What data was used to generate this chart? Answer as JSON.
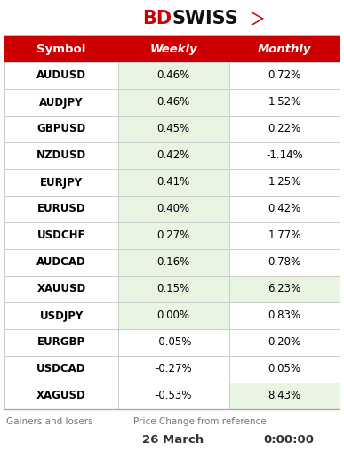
{
  "header": [
    "Symbol",
    "Weekly",
    "Monthly"
  ],
  "rows": [
    [
      "AUDUSD",
      "0.46%",
      "0.72%"
    ],
    [
      "AUDJPY",
      "0.46%",
      "1.52%"
    ],
    [
      "GBPUSD",
      "0.45%",
      "0.22%"
    ],
    [
      "NZDUSD",
      "0.42%",
      "-1.14%"
    ],
    [
      "EURJPY",
      "0.41%",
      "1.25%"
    ],
    [
      "EURUSD",
      "0.40%",
      "0.42%"
    ],
    [
      "USDCHF",
      "0.27%",
      "1.77%"
    ],
    [
      "AUDCAD",
      "0.16%",
      "0.78%"
    ],
    [
      "XAUUSD",
      "0.15%",
      "6.23%"
    ],
    [
      "USDJPY",
      "0.00%",
      "0.83%"
    ],
    [
      "EURGBP",
      "-0.05%",
      "0.20%"
    ],
    [
      "USDCAD",
      "-0.27%",
      "0.05%"
    ],
    [
      "XAGUSD",
      "-0.53%",
      "8.43%"
    ]
  ],
  "weekly_green": [
    true,
    true,
    true,
    true,
    true,
    true,
    true,
    true,
    true,
    true,
    false,
    false,
    false
  ],
  "monthly_green": [
    false,
    false,
    false,
    false,
    false,
    false,
    false,
    false,
    true,
    false,
    false,
    false,
    true
  ],
  "footer_left": "Gainers and losers",
  "footer_center": "Price Change from reference",
  "footer_date": "26 March",
  "footer_time": "0:00:00",
  "header_bg": "#CC0000",
  "header_text_color": "#FFFFFF",
  "cell_bg_white": "#FFFFFF",
  "cell_bg_green": "#E8F5E2",
  "border_color": "#CCCCCC",
  "footer_text_color": "#777777",
  "logo_red": "#CC0000",
  "logo_black": "#111111"
}
